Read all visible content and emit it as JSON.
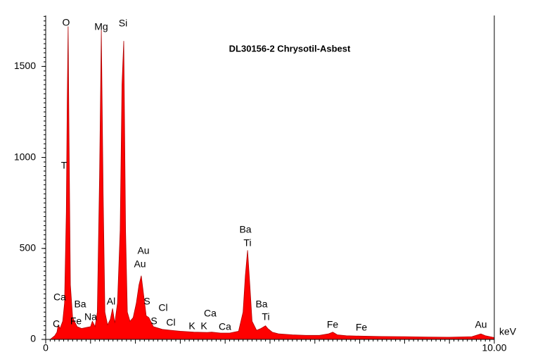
{
  "chart_data": {
    "type": "area",
    "title": "DL30156-2 Chrysotil-Asbest",
    "x_label": "keV",
    "color": "#ff0000",
    "xlim": [
      0,
      10
    ],
    "xticks": [
      0,
      {
        "value": 10,
        "label": "10.00"
      }
    ],
    "ylim": [
      0,
      1780
    ],
    "yticks": [
      0,
      500,
      1000,
      1500
    ],
    "x": [
      0.1,
      0.2,
      0.25,
      0.28,
      0.32,
      0.38,
      0.42,
      0.46,
      0.48,
      0.5,
      0.52,
      0.55,
      0.6,
      0.7,
      0.8,
      0.9,
      1.0,
      1.04,
      1.1,
      1.15,
      1.2,
      1.24,
      1.28,
      1.32,
      1.38,
      1.44,
      1.49,
      1.54,
      1.6,
      1.66,
      1.7,
      1.74,
      1.78,
      1.82,
      1.88,
      1.95,
      2.02,
      2.08,
      2.13,
      2.18,
      2.24,
      2.3,
      2.4,
      2.6,
      2.8,
      3.0,
      3.3,
      3.6,
      3.7,
      3.9,
      4.1,
      4.3,
      4.4,
      4.45,
      4.5,
      4.55,
      4.6,
      4.7,
      4.8,
      4.9,
      4.95,
      5.05,
      5.2,
      5.5,
      5.8,
      6.1,
      6.3,
      6.4,
      6.5,
      6.7,
      7.0,
      7.5,
      8.0,
      8.5,
      9.0,
      9.5,
      9.7,
      9.8,
      10.0
    ],
    "values": [
      0,
      20,
      40,
      80,
      60,
      100,
      200,
      700,
      1300,
      1720,
      1100,
      300,
      120,
      70,
      60,
      65,
      70,
      100,
      70,
      150,
      900,
      1700,
      800,
      150,
      80,
      110,
      170,
      90,
      200,
      600,
      1400,
      1640,
      600,
      150,
      100,
      120,
      200,
      300,
      350,
      250,
      130,
      120,
      70,
      55,
      50,
      45,
      40,
      38,
      40,
      35,
      35,
      45,
      150,
      350,
      490,
      300,
      100,
      50,
      60,
      75,
      60,
      40,
      30,
      25,
      22,
      22,
      30,
      40,
      25,
      20,
      18,
      16,
      15,
      13,
      12,
      15,
      30,
      20,
      10
    ],
    "annotations": [
      "O",
      "Mg",
      "Si",
      "T",
      "Ca",
      "C",
      "Fe",
      "Ba",
      "Na",
      "Al",
      "Au",
      "Au",
      "S",
      "S",
      "Cl",
      "Cl",
      "K",
      "K",
      "Ca",
      "Ca",
      "Ba",
      "Ti",
      "Ba",
      "Ti",
      "Fe",
      "Fe",
      "Au"
    ]
  }
}
